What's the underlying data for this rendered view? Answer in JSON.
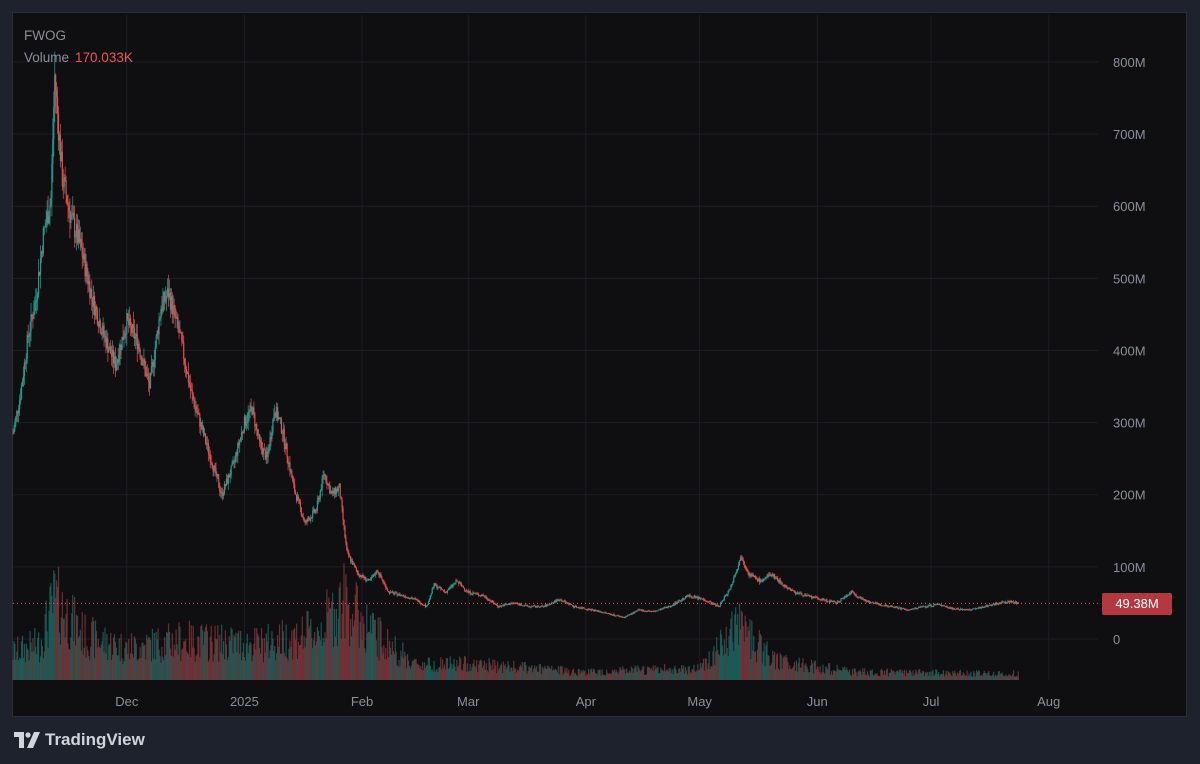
{
  "chart_data": {
    "type": "candlestick",
    "symbol": "FWOG",
    "volume_label": "Volume",
    "volume_value": "170.033K",
    "last_price": 49.38,
    "last_price_label": "49.38M",
    "y_ticks": [
      "800M",
      "700M",
      "600M",
      "500M",
      "400M",
      "300M",
      "200M",
      "100M",
      "0"
    ],
    "y_tick_values": [
      800,
      700,
      600,
      500,
      400,
      300,
      200,
      100,
      0
    ],
    "ylim": [
      0,
      830
    ],
    "x_ticks": [
      "Dec",
      "2025",
      "Feb",
      "Mar",
      "Apr",
      "May",
      "Jun",
      "Jul",
      "Aug"
    ],
    "x_range": [
      "2024-11-01",
      "2025-08-14"
    ],
    "x_tick_dates": [
      "2024-12-01",
      "2025-01-01",
      "2025-02-01",
      "2025-03-01",
      "2025-04-01",
      "2025-05-01",
      "2025-06-01",
      "2025-07-01",
      "2025-08-01"
    ],
    "price_path": [
      [
        "2024-11-01",
        285
      ],
      [
        "2024-11-03",
        340
      ],
      [
        "2024-11-05",
        420
      ],
      [
        "2024-11-07",
        470
      ],
      [
        "2024-11-09",
        560
      ],
      [
        "2024-11-11",
        610
      ],
      [
        "2024-11-12",
        780
      ],
      [
        "2024-11-14",
        640
      ],
      [
        "2024-11-16",
        590
      ],
      [
        "2024-11-19",
        540
      ],
      [
        "2024-11-22",
        470
      ],
      [
        "2024-11-25",
        420
      ],
      [
        "2024-11-28",
        380
      ],
      [
        "2024-12-01",
        440
      ],
      [
        "2024-12-04",
        410
      ],
      [
        "2024-12-07",
        350
      ],
      [
        "2024-12-10",
        460
      ],
      [
        "2024-12-12",
        480
      ],
      [
        "2024-12-15",
        420
      ],
      [
        "2024-12-18",
        340
      ],
      [
        "2024-12-22",
        270
      ],
      [
        "2024-12-26",
        200
      ],
      [
        "2024-12-29",
        240
      ],
      [
        "2025-01-01",
        300
      ],
      [
        "2025-01-03",
        320
      ],
      [
        "2025-01-05",
        270
      ],
      [
        "2025-01-07",
        250
      ],
      [
        "2025-01-09",
        320
      ],
      [
        "2025-01-11",
        290
      ],
      [
        "2025-01-14",
        210
      ],
      [
        "2025-01-17",
        160
      ],
      [
        "2025-01-20",
        180
      ],
      [
        "2025-01-22",
        230
      ],
      [
        "2025-01-24",
        200
      ],
      [
        "2025-01-26",
        210
      ],
      [
        "2025-01-28",
        120
      ],
      [
        "2025-01-31",
        90
      ],
      [
        "2025-02-03",
        80
      ],
      [
        "2025-02-05",
        95
      ],
      [
        "2025-02-08",
        65
      ],
      [
        "2025-02-12",
        60
      ],
      [
        "2025-02-15",
        55
      ],
      [
        "2025-02-18",
        45
      ],
      [
        "2025-02-20",
        75
      ],
      [
        "2025-02-23",
        65
      ],
      [
        "2025-02-26",
        80
      ],
      [
        "2025-03-01",
        65
      ],
      [
        "2025-03-05",
        60
      ],
      [
        "2025-03-09",
        45
      ],
      [
        "2025-03-13",
        50
      ],
      [
        "2025-03-17",
        45
      ],
      [
        "2025-03-21",
        45
      ],
      [
        "2025-03-25",
        55
      ],
      [
        "2025-03-29",
        45
      ],
      [
        "2025-04-03",
        40
      ],
      [
        "2025-04-07",
        35
      ],
      [
        "2025-04-11",
        30
      ],
      [
        "2025-04-15",
        40
      ],
      [
        "2025-04-19",
        38
      ],
      [
        "2025-04-23",
        45
      ],
      [
        "2025-04-28",
        60
      ],
      [
        "2025-05-02",
        55
      ],
      [
        "2025-05-06",
        45
      ],
      [
        "2025-05-09",
        70
      ],
      [
        "2025-05-12",
        115
      ],
      [
        "2025-05-14",
        90
      ],
      [
        "2025-05-17",
        80
      ],
      [
        "2025-05-20",
        90
      ],
      [
        "2025-05-23",
        75
      ],
      [
        "2025-05-26",
        65
      ],
      [
        "2025-05-29",
        60
      ],
      [
        "2025-06-02",
        55
      ],
      [
        "2025-06-06",
        50
      ],
      [
        "2025-06-10",
        65
      ],
      [
        "2025-06-13",
        55
      ],
      [
        "2025-06-17",
        48
      ],
      [
        "2025-06-21",
        45
      ],
      [
        "2025-06-25",
        40
      ],
      [
        "2025-06-29",
        45
      ],
      [
        "2025-07-03",
        48
      ],
      [
        "2025-07-07",
        42
      ],
      [
        "2025-07-11",
        40
      ],
      [
        "2025-07-15",
        45
      ],
      [
        "2025-07-19",
        50
      ],
      [
        "2025-07-22",
        52
      ],
      [
        "2025-07-24",
        49.38
      ]
    ],
    "volume_profile": [
      [
        "2024-11-01",
        0.35
      ],
      [
        "2024-11-08",
        0.45
      ],
      [
        "2024-11-12",
        1.0
      ],
      [
        "2024-11-20",
        0.55
      ],
      [
        "2024-12-01",
        0.4
      ],
      [
        "2024-12-15",
        0.5
      ],
      [
        "2025-01-05",
        0.45
      ],
      [
        "2025-01-20",
        0.6
      ],
      [
        "2025-01-27",
        1.0
      ],
      [
        "2025-02-05",
        0.55
      ],
      [
        "2025-02-15",
        0.2
      ],
      [
        "2025-03-01",
        0.2
      ],
      [
        "2025-04-01",
        0.1
      ],
      [
        "2025-05-01",
        0.15
      ],
      [
        "2025-05-12",
        0.7
      ],
      [
        "2025-05-20",
        0.25
      ],
      [
        "2025-06-10",
        0.1
      ],
      [
        "2025-07-24",
        0.08
      ]
    ]
  }
}
